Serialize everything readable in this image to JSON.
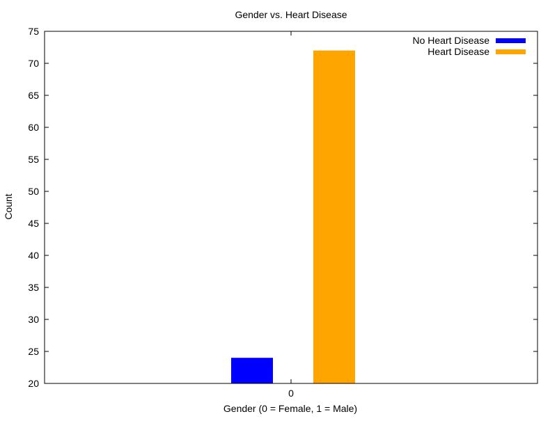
{
  "chart_data": {
    "type": "bar",
    "title": "Gender vs. Heart Disease",
    "xlabel": "Gender (0 = Female, 1 = Male)",
    "ylabel": "Count",
    "categories": [
      "0"
    ],
    "ylim": [
      20,
      75
    ],
    "yticks": [
      20,
      25,
      30,
      35,
      40,
      45,
      50,
      55,
      60,
      65,
      70,
      75
    ],
    "grid": false,
    "legend_position": "top-right",
    "series": [
      {
        "name": "No Heart Disease",
        "values": [
          24
        ],
        "color": "#0000ff"
      },
      {
        "name": "Heart Disease",
        "values": [
          72
        ],
        "color": "#ffa500"
      }
    ]
  }
}
